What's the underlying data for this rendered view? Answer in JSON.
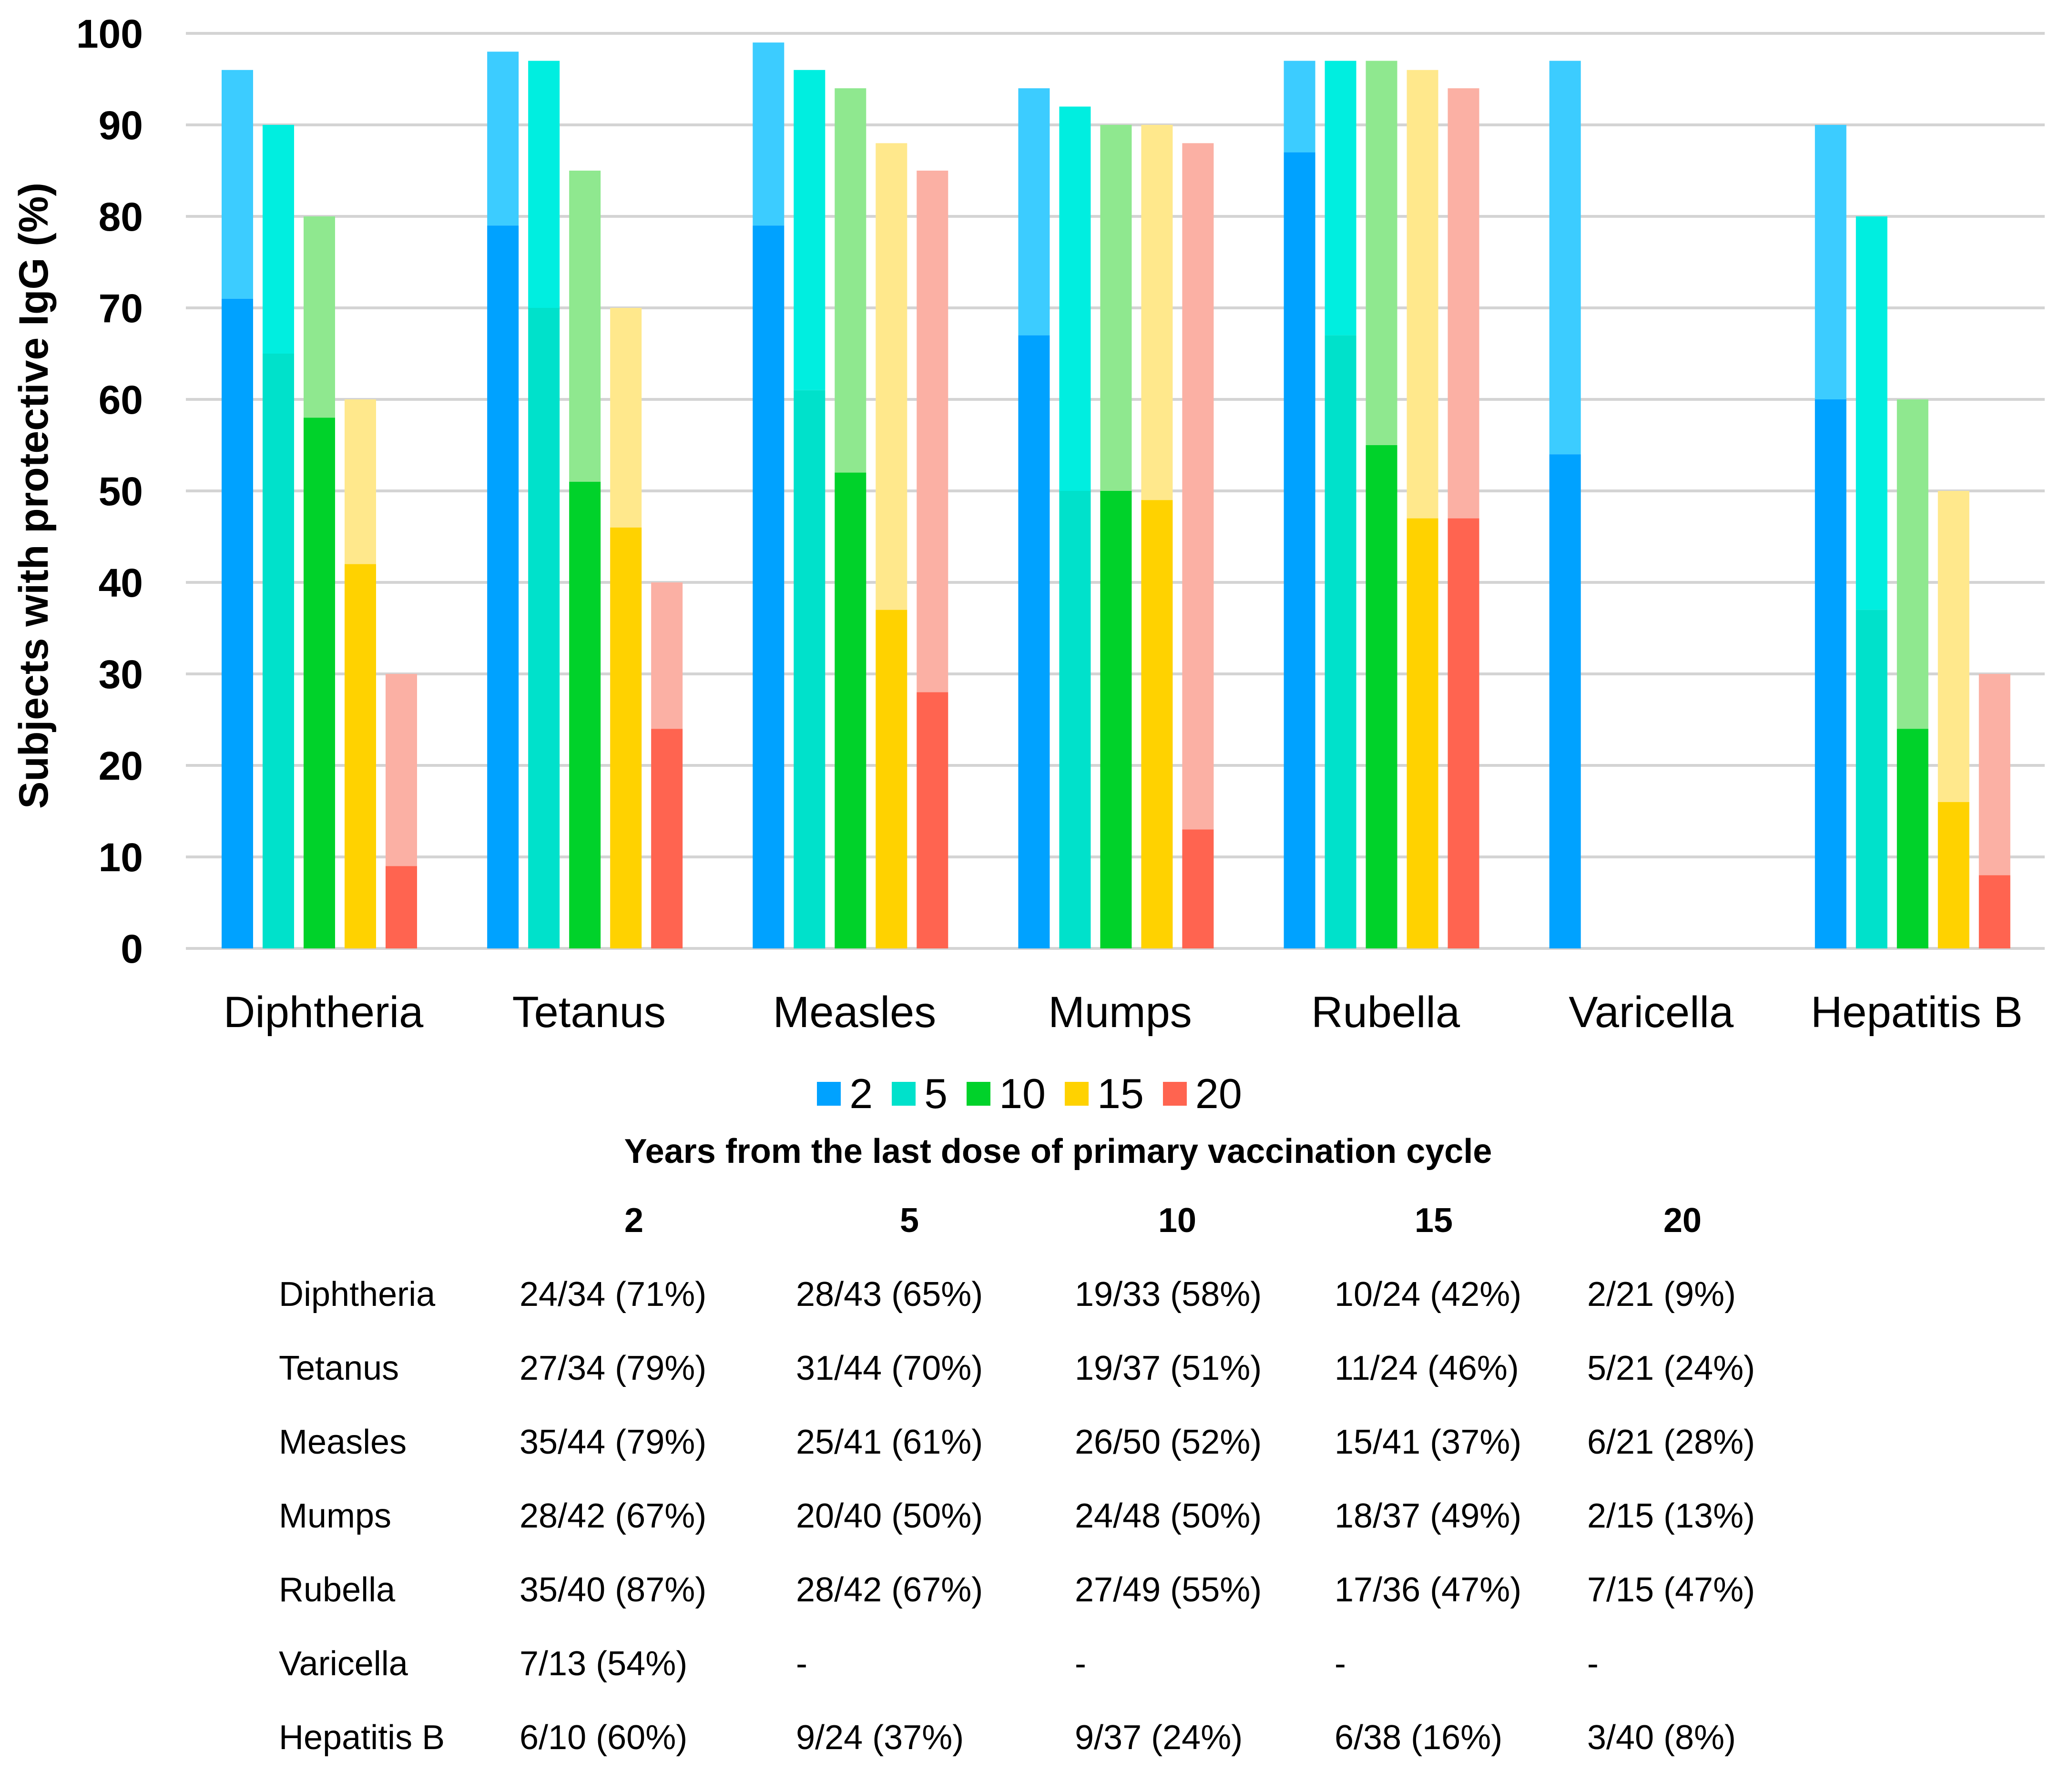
{
  "chart_data": {
    "type": "bar",
    "ylabel": "Subjects with protective IgG (%)",
    "ylim": [
      0,
      100
    ],
    "yticks": [
      0,
      10,
      20,
      30,
      40,
      50,
      60,
      70,
      80,
      90,
      100
    ],
    "grid": true,
    "categories": [
      "Diphtheria",
      "Tetanus",
      "Measles",
      "Mumps",
      "Rubella",
      "Varicella",
      "Hepatitis B"
    ],
    "series": [
      {
        "name": "2",
        "color": "#00A2FF",
        "light_color": "#3CCCFF",
        "values": [
          71,
          79,
          79,
          67,
          87,
          54,
          60
        ],
        "upper": [
          96,
          98,
          99,
          94,
          97,
          97,
          90
        ]
      },
      {
        "name": "5",
        "color": "#00E1CB",
        "light_color": "#00EEE0",
        "values": [
          65,
          70,
          61,
          50,
          67,
          null,
          37
        ],
        "upper": [
          90,
          97,
          96,
          92,
          97,
          null,
          80
        ]
      },
      {
        "name": "10",
        "color": "#00D22A",
        "light_color": "#8FE88F",
        "values": [
          58,
          51,
          52,
          50,
          55,
          null,
          24
        ],
        "upper": [
          80,
          85,
          94,
          90,
          97,
          null,
          60
        ]
      },
      {
        "name": "15",
        "color": "#FFD200",
        "light_color": "#FFE88C",
        "values": [
          42,
          46,
          37,
          49,
          47,
          null,
          16
        ],
        "upper": [
          60,
          70,
          88,
          90,
          96,
          null,
          50
        ]
      },
      {
        "name": "20",
        "color": "#FF6450",
        "light_color": "#FBB0A4",
        "values": [
          9,
          24,
          28,
          13,
          47,
          null,
          8
        ],
        "upper": [
          30,
          40,
          85,
          88,
          94,
          null,
          30
        ]
      }
    ],
    "legend": {
      "labels": [
        "2",
        "5",
        "10",
        "15",
        "20"
      ],
      "placement": "bottom"
    }
  },
  "table": {
    "title": "Years from the last dose of primary vaccination cycle",
    "headers": [
      "2",
      "5",
      "10",
      "15",
      "20"
    ],
    "rows": [
      {
        "label": "Diphtheria",
        "cells": [
          "24/34 (71%)",
          "28/43 (65%)",
          "19/33 (58%)",
          "10/24 (42%)",
          "2/21 (9%)"
        ]
      },
      {
        "label": "Tetanus",
        "cells": [
          "27/34 (79%)",
          "31/44 (70%)",
          "19/37 (51%)",
          "11/24 (46%)",
          "5/21 (24%)"
        ]
      },
      {
        "label": "Measles",
        "cells": [
          "35/44 (79%)",
          "25/41 (61%)",
          "26/50 (52%)",
          "15/41 (37%)",
          "6/21 (28%)"
        ]
      },
      {
        "label": "Mumps",
        "cells": [
          "28/42 (67%)",
          "20/40 (50%)",
          "24/48 (50%)",
          "18/37 (49%)",
          "2/15 (13%)"
        ]
      },
      {
        "label": "Rubella",
        "cells": [
          "35/40 (87%)",
          "28/42 (67%)",
          "27/49 (55%)",
          "17/36 (47%)",
          "7/15 (47%)"
        ]
      },
      {
        "label": "Varicella",
        "cells": [
          "7/13 (54%)",
          "-",
          "-",
          "-",
          "-"
        ]
      },
      {
        "label": "Hepatitis B",
        "cells": [
          "6/10 (60%)",
          "9/24 (37%)",
          "9/37 (24%)",
          "6/38 (16%)",
          "3/40 (8%)"
        ]
      }
    ]
  }
}
